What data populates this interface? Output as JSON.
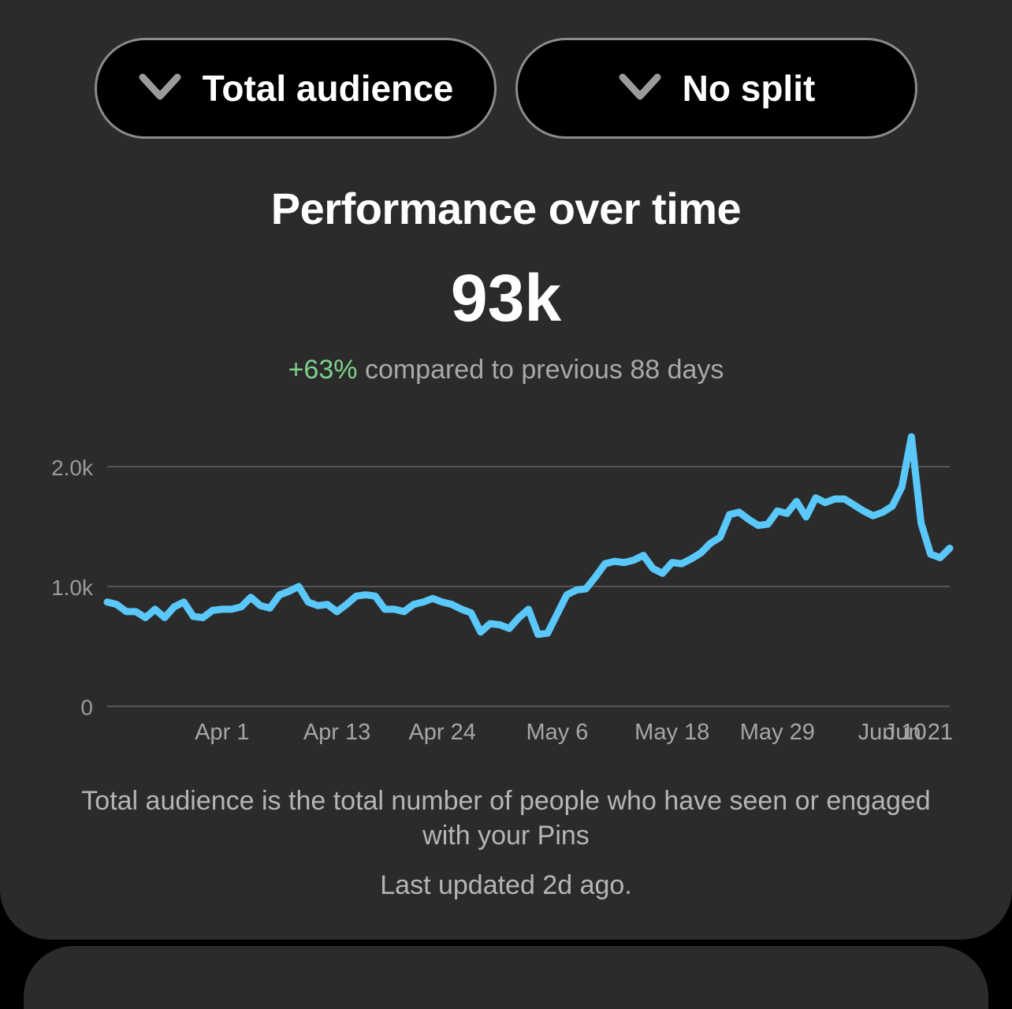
{
  "filters": {
    "metric_label": "Total audience",
    "split_label": "No split"
  },
  "header": {
    "title": "Performance over time",
    "total": "93k",
    "change": "+63%",
    "change_text": "compared to previous 88 days"
  },
  "colors": {
    "line": "#5ac8fa",
    "positive": "#7fd18b",
    "card": "#2b2b2b"
  },
  "chart_data": {
    "type": "line",
    "title": "Performance over time",
    "xlabel": "",
    "ylabel": "",
    "ylim": [
      0,
      2000
    ],
    "yticks": [
      0,
      1000,
      2000
    ],
    "ytick_labels": [
      "0",
      "1.0k",
      "2.0k"
    ],
    "x_start": "Mar 20",
    "xtick_labels": [
      "Apr 1",
      "Apr 13",
      "Apr 24",
      "May 6",
      "May 18",
      "May 29",
      "Jun 10",
      "Jun 21"
    ],
    "xtick_days": [
      12,
      24,
      35,
      47,
      59,
      70,
      82,
      93
    ],
    "grid": true,
    "incomplete_from_day": 92,
    "series": [
      {
        "name": "",
        "values": [
          870,
          850,
          790,
          790,
          740,
          810,
          740,
          830,
          870,
          750,
          740,
          800,
          810,
          810,
          830,
          910,
          840,
          820,
          930,
          960,
          1000,
          870,
          840,
          850,
          790,
          850,
          920,
          930,
          920,
          810,
          810,
          790,
          850,
          870,
          900,
          870,
          850,
          810,
          780,
          620,
          690,
          680,
          650,
          740,
          810,
          600,
          610,
          770,
          930,
          970,
          980,
          1080,
          1190,
          1210,
          1200,
          1220,
          1260,
          1150,
          1110,
          1200,
          1190,
          1230,
          1280,
          1360,
          1410,
          1600,
          1620,
          1560,
          1510,
          1520,
          1630,
          1610,
          1710,
          1580,
          1740,
          1700,
          1730,
          1730,
          1680,
          1630,
          1590,
          1620,
          1670,
          1830,
          2250,
          1530,
          1270,
          1240,
          1320
        ]
      }
    ]
  },
  "footer": {
    "description": "Total audience is the total number of people who have seen or engaged with your Pins",
    "updated": "Last updated 2d ago."
  }
}
